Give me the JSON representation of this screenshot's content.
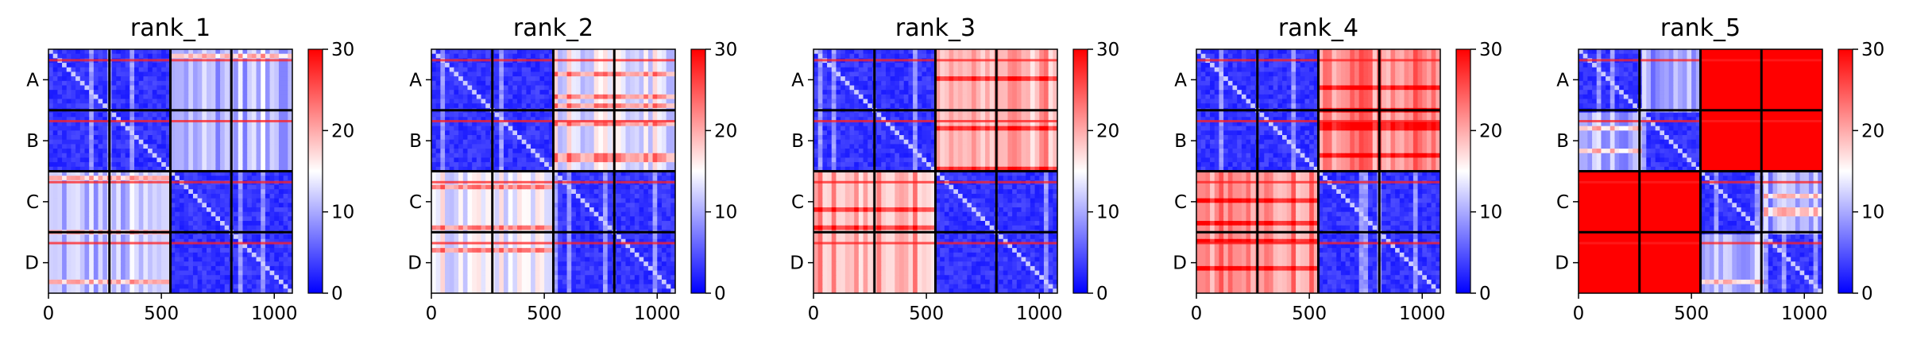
{
  "chart_data": [
    {
      "type": "heatmap",
      "title": "rank_1",
      "row_labels": [
        "A",
        "B",
        "C",
        "D"
      ],
      "x_ticks": [
        0,
        500,
        1000
      ],
      "colorbar_ticks": [
        0,
        10,
        20,
        30
      ],
      "vmin": 0,
      "vmax": 30,
      "n": 1080,
      "block_size": 270,
      "block_levels": [
        [
          1.5,
          1.5,
          11,
          11
        ],
        [
          1.5,
          1.5,
          11,
          11
        ],
        [
          11,
          11,
          1.5,
          1.5
        ],
        [
          11,
          11,
          1.5,
          1.5
        ]
      ]
    },
    {
      "type": "heatmap",
      "title": "rank_2",
      "row_labels": [
        "A",
        "B",
        "C",
        "D"
      ],
      "x_ticks": [
        0,
        500,
        1000
      ],
      "colorbar_ticks": [
        0,
        10,
        20,
        30
      ],
      "vmin": 0,
      "vmax": 30,
      "n": 1080,
      "block_size": 270,
      "block_levels": [
        [
          1.5,
          1.5,
          14,
          14
        ],
        [
          1.5,
          1.5,
          14,
          14
        ],
        [
          14,
          14,
          1.5,
          1.5
        ],
        [
          14,
          14,
          1.5,
          1.5
        ]
      ]
    },
    {
      "type": "heatmap",
      "title": "rank_3",
      "row_labels": [
        "A",
        "B",
        "C",
        "D"
      ],
      "x_ticks": [
        0,
        500,
        1000
      ],
      "colorbar_ticks": [
        0,
        10,
        20,
        30
      ],
      "vmin": 0,
      "vmax": 30,
      "n": 1080,
      "block_size": 270,
      "block_levels": [
        [
          1.5,
          1.5,
          20,
          20
        ],
        [
          1.5,
          1.5,
          20,
          20
        ],
        [
          20,
          20,
          1.5,
          1.5
        ],
        [
          20,
          20,
          1.5,
          1.5
        ]
      ]
    },
    {
      "type": "heatmap",
      "title": "rank_4",
      "row_labels": [
        "A",
        "B",
        "C",
        "D"
      ],
      "x_ticks": [
        0,
        500,
        1000
      ],
      "colorbar_ticks": [
        0,
        10,
        20,
        30
      ],
      "vmin": 0,
      "vmax": 30,
      "n": 1080,
      "block_size": 270,
      "block_levels": [
        [
          1.5,
          1.5,
          22,
          22
        ],
        [
          1.5,
          1.5,
          22,
          22
        ],
        [
          22,
          22,
          1.5,
          1.5
        ],
        [
          22,
          22,
          1.5,
          1.5
        ]
      ]
    },
    {
      "type": "heatmap",
      "title": "rank_5",
      "row_labels": [
        "A",
        "B",
        "C",
        "D"
      ],
      "x_ticks": [
        0,
        500,
        1000
      ],
      "colorbar_ticks": [
        0,
        10,
        20,
        30
      ],
      "vmin": 0,
      "vmax": 30,
      "n": 1080,
      "block_size": 270,
      "block_levels": [
        [
          1.5,
          10,
          30,
          30
        ],
        [
          10,
          1.5,
          30,
          30
        ],
        [
          30,
          30,
          1.5,
          10
        ],
        [
          30,
          30,
          10,
          1.5
        ]
      ]
    }
  ],
  "colormap": {
    "low": "#0000ff",
    "mid": "#ffffff",
    "high": "#ff0000"
  }
}
